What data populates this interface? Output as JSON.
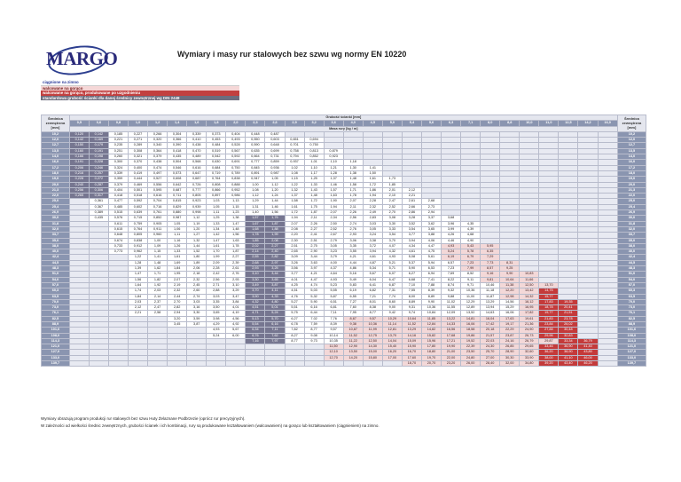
{
  "logo_text": "MARGO",
  "title": "Wymiary i masy rur stalowych bez szwu wg normy EN 10220",
  "legend": [
    "ciągnione na zimno",
    "walcowane na gorąco",
    "walcowane na gorąco, produkowane po uzgodnieniu",
    "standardowa grubość ścianki dla danej średnicy zewnętrznej wg DIN 2448"
  ],
  "header": {
    "left": "Średnica zewnętrzna [mm]",
    "right": "Średnica zewnętrzna [mm]",
    "wall_label": "Grubość ścianki [mm]",
    "mass_label": "Masa rury [kg / m]"
  },
  "wall_thicknesses": [
    "0,5",
    "0,6",
    "0,8",
    "1,0",
    "1,2",
    "1,4",
    "1,6",
    "1,8",
    "2,0",
    "2,3",
    "2,6",
    "2,9",
    "3,2",
    "3,6",
    "4,0",
    "4,5",
    "5,0",
    "5,4",
    "5,6",
    "6,3",
    "7,1",
    "8,0",
    "8,8",
    "10,0",
    "11,0",
    "12,5",
    "14,2",
    "16,0"
  ],
  "rows": [
    {
      "od": "10,2",
      "start": 0,
      "mass": [
        "0,120",
        "0,142",
        "0,185",
        "0,227",
        "0,266",
        "0,304",
        "0,339",
        "0,373",
        "0,404",
        "0,448",
        "0,487"
      ]
    },
    {
      "od": "12,0",
      "start": 0,
      "mass": [
        "0,142",
        "0,169",
        "0,221",
        "0,271",
        "0,320",
        "0,366",
        "0,410",
        "0,453",
        "0,493",
        "0,550",
        "0,603",
        "0,651",
        "0,694"
      ]
    },
    {
      "od": "12,7",
      "start": 0,
      "mass": [
        "0,150",
        "0,179",
        "0,235",
        "0,289",
        "0,340",
        "0,390",
        "0,438",
        "0,484",
        "0,528",
        "0,590",
        "0,648",
        "0,701",
        "0,750"
      ]
    },
    {
      "od": "13,5",
      "start": 0,
      "mass": [
        "0,160",
        "0,191",
        "0,251",
        "0,308",
        "0,364",
        "0,418",
        "0,470",
        "0,519",
        "0,567",
        "0,635",
        "0,699",
        "0,758",
        "0,813",
        "0,879"
      ]
    },
    {
      "od": "14,0",
      "start": 0,
      "mass": [
        "0,166",
        "0,198",
        "0,260",
        "0,321",
        "0,379",
        "0,435",
        "0,489",
        "0,542",
        "0,592",
        "0,664",
        "0,731",
        "0,794",
        "0,852",
        "0,923"
      ]
    },
    {
      "od": "16,0",
      "start": 0,
      "mass": [
        "0,191",
        "0,228",
        "0,300",
        "0,370",
        "0,438",
        "0,504",
        "0,568",
        "0,630",
        "0,691",
        "0,777",
        "0,859",
        "0,937",
        "1,01",
        "1,10",
        "1,18"
      ]
    },
    {
      "od": "17,2",
      "start": 0,
      "mass": [
        "0,206",
        "0,246",
        "0,324",
        "0,400",
        "0,474",
        "0,546",
        "0,616",
        "0,684",
        "0,750",
        "0,845",
        "0,936",
        "1,02",
        "1,10",
        "1,21",
        "1,30",
        "1,41"
      ]
    },
    {
      "od": "18,0",
      "start": 0,
      "mass": [
        "0,216",
        "0,257",
        "0,339",
        "0,419",
        "0,497",
        "0,573",
        "0,647",
        "0,719",
        "0,789",
        "0,891",
        "0,987",
        "1,08",
        "1,17",
        "1,28",
        "1,38",
        "1,50"
      ]
    },
    {
      "od": "19,0",
      "start": 0,
      "mass": [
        "0,228",
        "0,272",
        "0,359",
        "0,444",
        "0,527",
        "0,608",
        "0,687",
        "0,764",
        "0,838",
        "0,947",
        "1,05",
        "1,15",
        "1,25",
        "1,37",
        "1,48",
        "1,61",
        "1,73"
      ]
    },
    {
      "od": "20,0",
      "start": 0,
      "mass": [
        "0,240",
        "0,287",
        "0,379",
        "0,469",
        "0,556",
        "0,642",
        "0,726",
        "0,808",
        "0,888",
        "1,00",
        "1,12",
        "1,22",
        "1,33",
        "1,46",
        "1,58",
        "1,72",
        "1,85"
      ]
    },
    {
      "od": "21,3",
      "start": 0,
      "mass": [
        "0,256",
        "0,306",
        "0,404",
        "0,501",
        "0,595",
        "0,687",
        "0,777",
        "0,866",
        "0,952",
        "1,08",
        "1,20",
        "1,32",
        "1,43",
        "1,57",
        "1,71",
        "1,86",
        "2,01",
        "2,12"
      ]
    },
    {
      "od": "22,0",
      "start": 0,
      "mass": [
        "0,265",
        "0,317",
        "0,418",
        "0,518",
        "0,616",
        "0,711",
        "0,805",
        "0,897",
        "0,986",
        "1,12",
        "1,24",
        "1,37",
        "1,48",
        "1,63",
        "1,78",
        "1,94",
        "2,10",
        "2,21"
      ]
    },
    {
      "od": "25,0",
      "start": 1,
      "mass": [
        "0,361",
        "0,477",
        "0,592",
        "0,704",
        "0,815",
        "0,923",
        "1,03",
        "1,13",
        "1,29",
        "1,44",
        "1,58",
        "1,72",
        "1,90",
        "2,07",
        "2,28",
        "2,47",
        "2,61",
        "2,68"
      ]
    },
    {
      "od": "25,4",
      "start": 1,
      "mass": [
        "0,367",
        "0,485",
        "0,602",
        "0,716",
        "0,829",
        "0,939",
        "1,05",
        "1,15",
        "1,31",
        "1,46",
        "1,61",
        "1,75",
        "1,94",
        "2,11",
        "2,32",
        "2,52",
        "2,66",
        "2,73"
      ]
    },
    {
      "od": "26,9",
      "start": 1,
      "mass": [
        "0,389",
        "0,515",
        "0,639",
        "0,761",
        "0,880",
        "0,998",
        "1,11",
        "1,23",
        "1,40",
        "1,56",
        "1,72",
        "1,87",
        "2,07",
        "2,26",
        "2,49",
        "2,70",
        "2,86",
        "2,94"
      ]
    },
    {
      "od": "30,0",
      "start": 1,
      "mass": [
        "0,435",
        "0,576",
        "0,715",
        "0,852",
        "0,987",
        "1,12",
        "1,25",
        "1,38",
        "1,57",
        "1,76",
        "1,94",
        "2,11",
        "2,34",
        "2,56",
        "2,83",
        "3,08",
        "3,28",
        "3,37",
        "3,68"
      ]
    },
    {
      "od": "31,8",
      "start": 2,
      "mass": [
        "0,611",
        "0,759",
        "0,905",
        "1,05",
        "1,19",
        "1,33",
        "1,47",
        "1,67",
        "1,87",
        "2,07",
        "2,26",
        "2,50",
        "2,74",
        "3,03",
        "3,30",
        "3,52",
        "3,62",
        "3,96",
        "4,35"
      ]
    },
    {
      "od": "32,0",
      "start": 2,
      "mass": [
        "0,615",
        "0,764",
        "0,911",
        "1,06",
        "1,20",
        "1,34",
        "1,48",
        "1,68",
        "1,88",
        "2,08",
        "2,27",
        "2,52",
        "2,76",
        "3,05",
        "3,33",
        "3,54",
        "3,65",
        "3,99",
        "4,39"
      ]
    },
    {
      "od": "33,7",
      "start": 2,
      "mass": [
        "0,648",
        "0,805",
        "0,960",
        "1,11",
        "1,27",
        "1,42",
        "1,56",
        "1,78",
        "1,99",
        "2,20",
        "2,41",
        "2,67",
        "2,93",
        "3,24",
        "3,54",
        "3,77",
        "3,88",
        "4,26",
        "4,68"
      ]
    },
    {
      "od": "35,0",
      "start": 2,
      "mass": [
        "0,674",
        "0,838",
        "1,00",
        "1,16",
        "1,32",
        "1,47",
        "1,63",
        "1,85",
        "2,08",
        "2,30",
        "2,51",
        "2,79",
        "3,06",
        "3,38",
        "3,70",
        "3,94",
        "4,06",
        "4,46",
        "4,90"
      ]
    },
    {
      "od": "38,0",
      "start": 2,
      "mass": [
        "0,733",
        "0,912",
        "1,09",
        "1,26",
        "1,44",
        "1,61",
        "1,78",
        "2,02",
        "2,27",
        "2,51",
        "2,75",
        "3,05",
        "3,35",
        "3,72",
        "4,07",
        "4,34",
        "4,47",
        "4,93",
        "5,43",
        "5,95"
      ]
    },
    {
      "od": "40,0",
      "start": 2,
      "mass": [
        "0,773",
        "0,962",
        "1,15",
        "1,33",
        "1,52",
        "1,70",
        "1,87",
        "2,14",
        "2,40",
        "2,65",
        "2,90",
        "3,23",
        "3,55",
        "3,94",
        "4,32",
        "4,61",
        "4,75",
        "5,24",
        "5,78",
        "6,35"
      ]
    },
    {
      "od": "42,4",
      "start": 3,
      "mass": [
        "1,22",
        "1,41",
        "1,61",
        "1,80",
        "1,99",
        "2,27",
        "2,55",
        "2,82",
        "3,09",
        "3,44",
        "3,79",
        "4,21",
        "4,61",
        "4,93",
        "5,08",
        "5,61",
        "6,19",
        "6,79",
        "7,29"
      ]
    },
    {
      "od": "44,5",
      "start": 3,
      "mass": [
        "1,28",
        "1,48",
        "1,69",
        "1,89",
        "2,09",
        "2,39",
        "2,68",
        "2,97",
        "3,26",
        "3,63",
        "4,00",
        "4,44",
        "4,87",
        "5,21",
        "5,37",
        "5,94",
        "6,57",
        "7,23",
        "7,73",
        "8,31"
      ]
    },
    {
      "od": "48,3",
      "start": 3,
      "mass": [
        "1,39",
        "1,62",
        "1,84",
        "2,06",
        "2,28",
        "2,61",
        "2,93",
        "3,25",
        "3,56",
        "3,97",
        "4,37",
        "4,86",
        "5,34",
        "5,71",
        "5,90",
        "6,53",
        "7,23",
        "7,99",
        "8,57",
        "9,25"
      ]
    },
    {
      "od": "51,0",
      "start": 3,
      "mass": [
        "1,47",
        "1,71",
        "1,95",
        "2,18",
        "2,42",
        "2,76",
        "3,10",
        "3,44",
        "3,77",
        "4,21",
        "4,64",
        "5,16",
        "5,67",
        "6,07",
        "6,27",
        "6,94",
        "7,69",
        "8,52",
        "9,16",
        "9,90",
        "10,83"
      ]
    },
    {
      "od": "54,0",
      "start": 3,
      "mass": [
        "1,56",
        "1,82",
        "2,07",
        "2,32",
        "2,56",
        "2,93",
        "3,30",
        "3,65",
        "4,01",
        "4,47",
        "4,93",
        "5,49",
        "6,04",
        "6,47",
        "6,68",
        "7,41",
        "8,22",
        "9,11",
        "9,81",
        "10,64",
        "11,66"
      ]
    },
    {
      "od": "57,0",
      "start": 3,
      "mass": [
        "1,64",
        "1,92",
        "2,19",
        "2,45",
        "2,71",
        "3,10",
        "3,49",
        "3,87",
        "4,25",
        "4,74",
        "5,23",
        "5,83",
        "6,41",
        "6,87",
        "7,10",
        "7,88",
        "8,74",
        "9,71",
        "10,46",
        "11,38",
        "12,50",
        "13,70"
      ]
    },
    {
      "od": "60,3",
      "start": 3,
      "mass": [
        "1,74",
        "2,03",
        "2,32",
        "2,60",
        "2,88",
        "3,29",
        "3,70",
        "4,11",
        "4,51",
        "5,03",
        "5,55",
        "6,19",
        "6,82",
        "7,31",
        "7,55",
        "8,39",
        "9,32",
        "10,36",
        "11,18",
        "12,20",
        "13,42",
        "14,75"
      ]
    },
    {
      "od": "63,5",
      "start": 3,
      "mass": [
        "1,84",
        "2,14",
        "2,44",
        "2,74",
        "3,03",
        "3,47",
        "3,90",
        "4,33",
        "4,76",
        "5,32",
        "5,87",
        "6,55",
        "7,21",
        "7,74",
        "8,00",
        "8,89",
        "9,88",
        "11,00",
        "11,87",
        "12,98",
        "14,32",
        "15,77"
      ]
    },
    {
      "od": "70,0",
      "start": 3,
      "mass": [
        "2,03",
        "2,37",
        "2,70",
        "3,03",
        "3,35",
        "3,84",
        "4,32",
        "4,80",
        "5,27",
        "5,90",
        "6,51",
        "7,27",
        "8,01",
        "8,60",
        "8,89",
        "9,90",
        "11,02",
        "12,29",
        "13,29",
        "14,56",
        "16,12",
        "17,83",
        "19,35"
      ]
    },
    {
      "od": "73,0",
      "start": 3,
      "mass": [
        "2,12",
        "2,47",
        "2,82",
        "3,16",
        "3,50",
        "4,01",
        "4,51",
        "5,01",
        "5,51",
        "6,16",
        "6,81",
        "7,60",
        "8,38",
        "9,00",
        "9,31",
        "10,36",
        "11,55",
        "12,89",
        "13,94",
        "15,29",
        "16,95",
        "18,78",
        "20,41"
      ]
    },
    {
      "od": "76,1",
      "start": 3,
      "mass": [
        "2,21",
        "2,58",
        "2,94",
        "3,30",
        "3,65",
        "4,19",
        "4,71",
        "5,24",
        "5,75",
        "6,44",
        "7,11",
        "7,95",
        "8,77",
        "9,42",
        "9,74",
        "10,84",
        "12,09",
        "13,52",
        "14,63",
        "16,06",
        "17,82",
        "19,77",
        "21,51"
      ]
    },
    {
      "od": "82,5",
      "start": 5,
      "mass": [
        "3,20",
        "3,59",
        "3,98",
        "4,56",
        "5,13",
        "5,70",
        "6,27",
        "7,02",
        "7,76",
        "8,67",
        "9,57",
        "10,29",
        "10,64",
        "11,85",
        "13,22",
        "14,81",
        "16,04",
        "17,63",
        "19,61",
        "21,83",
        "23,78"
      ]
    },
    {
      "od": "88,9",
      "start": 5,
      "mass": [
        "3,45",
        "3,87",
        "4,29",
        "4,92",
        "5,54",
        "6,16",
        "6,78",
        "7,59",
        "8,39",
        "9,38",
        "10,36",
        "11,14",
        "11,52",
        "12,84",
        "14,33",
        "16,06",
        "17,42",
        "19,17",
        "21,36",
        "23,84",
        "26,02"
      ]
    },
    {
      "od": "101,6",
      "start": 7,
      "mass": [
        "4,93",
        "5,67",
        "6,34",
        "7,11",
        "7,82",
        "8,77",
        "9,57",
        "10,87",
        "11,99",
        "12,81",
        "13,29",
        "14,82",
        "16,56",
        "18,58",
        "20,18",
        "22,29",
        "24,90",
        "27,88",
        "30,48"
      ]
    },
    {
      "od": "108,0",
      "start": 7,
      "mass": [
        "5,24",
        "6,00",
        "6,76",
        "7,62",
        "8,27",
        "9,08",
        "10,14",
        "11,52",
        "12,75",
        "13,70",
        "14,16",
        "15,82",
        "17,68",
        "19,86",
        "21,57",
        "23,87",
        "26,73",
        "29,96",
        "32,83"
      ]
    },
    {
      "od": "114,3",
      "start": 9,
      "mass": [
        "7,16",
        "7,97",
        "8,77",
        "9,73",
        "10,35",
        "11,22",
        "12,50",
        "14,04",
        "15,09",
        "15,96",
        "17,21",
        "19,52",
        "22,03",
        "24,16",
        "26,79",
        "29,87",
        "33,34",
        "36,79"
      ]
    },
    {
      "od": "121,0",
      "start": 13,
      "mass": [
        "11,50",
        "12,90",
        "14,30",
        "15,40",
        "15,90",
        "17,80",
        "19,90",
        "22,39",
        "24,30",
        "26,85",
        "29,65",
        "33,46",
        "36,90",
        "41,40"
      ]
    },
    {
      "od": "127,0",
      "start": 13,
      "mass": [
        "12,10",
        "13,50",
        "15,00",
        "16,20",
        "16,70",
        "18,80",
        "21,00",
        "23,50",
        "25,70",
        "28,90",
        "32,60",
        "36,20",
        "38,90",
        "43,80"
      ]
    },
    {
      "od": "133,0",
      "start": 13,
      "mass": [
        "12,70",
        "14,20",
        "15,80",
        "17,00",
        "17,60",
        "19,70",
        "22,00",
        "24,80",
        "27,00",
        "30,30",
        "33,90",
        "38,00",
        "41,10",
        "46,00"
      ]
    },
    {
      "od": "139,7",
      "start": 17,
      "mass": [
        "18,70",
        "20,70",
        "23,20",
        "26,00",
        "28,40",
        "32,00",
        "34,80",
        "39,20",
        "43,40",
        "46,20"
      ]
    }
  ],
  "notes": [
    "Wymiary obrazują program produkcji rur stalowych bez szwu Huty Żelaznane Podbrzezie (oprócz rur precyzyjnych).",
    "W zależności od wielkości średnic zewnętrznych, grubości ścianek i ich kombinacji, rury są produkowane kształtowaniem (walcowaniem) na gorąco lub kształtowaniem (ciągnieniem) na zimno."
  ],
  "colors": {
    "cold_drawn": "#ffffff",
    "hot_rolled": "#f3d8d8",
    "on_request": "#c43a3a",
    "standard_din": "#767690",
    "header": "#8a95b0"
  }
}
